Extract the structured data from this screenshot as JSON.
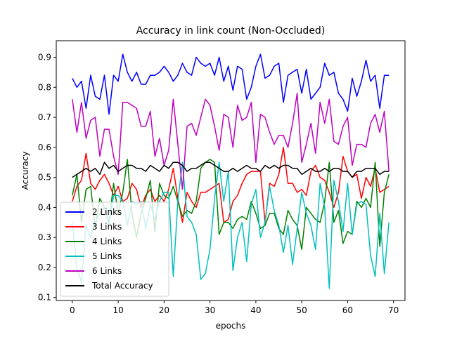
{
  "chart_data": {
    "type": "line",
    "title": "Accuracy in link count (Non-Occluded)",
    "xlabel": "epochs",
    "ylabel": "Accuracy",
    "xlim": [
      -3.5,
      72.5
    ],
    "ylim": [
      0.09,
      0.955
    ],
    "xticks": [
      0,
      10,
      20,
      30,
      40,
      50,
      60,
      70
    ],
    "yticks": [
      0.1,
      0.2,
      0.3,
      0.4,
      0.5,
      0.6,
      0.7,
      0.8,
      0.9
    ],
    "legend_position": "lower-left",
    "grid": false,
    "x": [
      0,
      1,
      2,
      3,
      4,
      5,
      6,
      7,
      8,
      9,
      10,
      11,
      12,
      13,
      14,
      15,
      16,
      17,
      18,
      19,
      20,
      21,
      22,
      23,
      24,
      25,
      26,
      27,
      28,
      29,
      30,
      31,
      32,
      33,
      34,
      35,
      36,
      37,
      38,
      39,
      40,
      41,
      42,
      43,
      44,
      45,
      46,
      47,
      48,
      49,
      50,
      51,
      52,
      53,
      54,
      55,
      56,
      57,
      58,
      59,
      60,
      61,
      62,
      63,
      64,
      65,
      66,
      67,
      68,
      69
    ],
    "series": [
      {
        "name": "2 Links",
        "color": "#0000ff",
        "values": [
          0.83,
          0.8,
          0.82,
          0.73,
          0.84,
          0.77,
          0.76,
          0.84,
          0.71,
          0.84,
          0.82,
          0.91,
          0.85,
          0.82,
          0.85,
          0.81,
          0.81,
          0.84,
          0.84,
          0.85,
          0.87,
          0.85,
          0.82,
          0.84,
          0.88,
          0.85,
          0.84,
          0.9,
          0.88,
          0.87,
          0.88,
          0.84,
          0.9,
          0.82,
          0.87,
          0.79,
          0.87,
          0.86,
          0.76,
          0.8,
          0.87,
          0.91,
          0.83,
          0.84,
          0.87,
          0.88,
          0.75,
          0.84,
          0.85,
          0.86,
          0.78,
          0.86,
          0.76,
          0.78,
          0.8,
          0.88,
          0.84,
          0.85,
          0.78,
          0.76,
          0.72,
          0.83,
          0.77,
          0.82,
          0.89,
          0.82,
          0.84,
          0.73,
          0.84,
          0.84
        ]
      },
      {
        "name": "3 Links",
        "color": "#ff0000",
        "values": [
          0.42,
          0.47,
          0.49,
          0.58,
          0.48,
          0.46,
          0.49,
          0.51,
          0.48,
          0.44,
          0.47,
          0.42,
          0.43,
          0.48,
          0.46,
          0.4,
          0.44,
          0.46,
          0.42,
          0.44,
          0.42,
          0.46,
          0.53,
          0.43,
          0.35,
          0.45,
          0.42,
          0.4,
          0.45,
          0.45,
          0.46,
          0.47,
          0.48,
          0.35,
          0.36,
          0.42,
          0.44,
          0.48,
          0.51,
          0.52,
          0.52,
          0.52,
          0.35,
          0.48,
          0.47,
          0.51,
          0.6,
          0.48,
          0.48,
          0.45,
          0.46,
          0.44,
          0.52,
          0.54,
          0.5,
          0.49,
          0.45,
          0.4,
          0.45,
          0.57,
          0.52,
          0.5,
          0.51,
          0.43,
          0.5,
          0.47,
          0.53,
          0.45,
          0.46,
          0.47
        ]
      },
      {
        "name": "4 Links",
        "color": "#008000",
        "values": [
          0.44,
          0.51,
          0.35,
          0.46,
          0.47,
          0.33,
          0.43,
          0.4,
          0.35,
          0.48,
          0.38,
          0.45,
          0.56,
          0.38,
          0.3,
          0.38,
          0.43,
          0.49,
          0.32,
          0.48,
          0.44,
          0.43,
          0.47,
          0.42,
          0.37,
          0.39,
          0.38,
          0.42,
          0.53,
          0.55,
          0.56,
          0.55,
          0.31,
          0.35,
          0.35,
          0.33,
          0.36,
          0.37,
          0.36,
          0.42,
          0.38,
          0.33,
          0.34,
          0.38,
          0.38,
          0.33,
          0.31,
          0.39,
          0.36,
          0.34,
          0.26,
          0.4,
          0.38,
          0.36,
          0.35,
          0.42,
          0.55,
          0.35,
          0.39,
          0.28,
          0.32,
          0.31,
          0.42,
          0.4,
          0.43,
          0.4,
          0.55,
          0.27,
          0.45,
          0.51
        ]
      },
      {
        "name": "5 Links",
        "color": "#00bfbf",
        "values": [
          0.35,
          0.2,
          0.15,
          0.34,
          0.3,
          0.35,
          0.38,
          0.4,
          0.34,
          0.44,
          0.44,
          0.42,
          0.34,
          0.42,
          0.41,
          0.42,
          0.33,
          0.41,
          0.36,
          0.42,
          0.45,
          0.45,
          0.17,
          0.42,
          0.55,
          0.37,
          0.35,
          0.31,
          0.16,
          0.18,
          0.26,
          0.43,
          0.55,
          0.42,
          0.52,
          0.19,
          0.3,
          0.35,
          0.22,
          0.41,
          0.46,
          0.3,
          0.35,
          0.47,
          0.39,
          0.34,
          0.25,
          0.34,
          0.21,
          0.33,
          0.45,
          0.38,
          0.34,
          0.26,
          0.48,
          0.4,
          0.13,
          0.49,
          0.42,
          0.32,
          0.48,
          0.31,
          0.41,
          0.42,
          0.41,
          0.24,
          0.17,
          0.38,
          0.18,
          0.35
        ]
      },
      {
        "name": "6 Links",
        "color": "#bf00bf",
        "values": [
          0.76,
          0.65,
          0.75,
          0.63,
          0.69,
          0.7,
          0.57,
          0.66,
          0.66,
          0.57,
          0.51,
          0.75,
          0.75,
          0.74,
          0.73,
          0.67,
          0.67,
          0.72,
          0.57,
          0.63,
          0.54,
          0.59,
          0.76,
          0.61,
          0.46,
          0.67,
          0.68,
          0.64,
          0.7,
          0.76,
          0.74,
          0.67,
          0.59,
          0.71,
          0.7,
          0.6,
          0.74,
          0.69,
          0.7,
          0.75,
          0.55,
          0.71,
          0.7,
          0.65,
          0.61,
          0.64,
          0.64,
          0.6,
          0.68,
          0.78,
          0.55,
          0.61,
          0.68,
          0.58,
          0.75,
          0.68,
          0.76,
          0.62,
          0.61,
          0.67,
          0.7,
          0.54,
          0.61,
          0.61,
          0.6,
          0.68,
          0.71,
          0.65,
          0.72,
          0.52
        ]
      },
      {
        "name": "Total Accuracy",
        "color": "#000000",
        "values": [
          0.5,
          0.51,
          0.52,
          0.53,
          0.52,
          0.53,
          0.51,
          0.55,
          0.53,
          0.54,
          0.52,
          0.53,
          0.54,
          0.54,
          0.53,
          0.53,
          0.52,
          0.54,
          0.53,
          0.52,
          0.54,
          0.53,
          0.55,
          0.55,
          0.54,
          0.52,
          0.53,
          0.53,
          0.54,
          0.55,
          0.55,
          0.54,
          0.53,
          0.52,
          0.52,
          0.53,
          0.52,
          0.53,
          0.54,
          0.53,
          0.53,
          0.52,
          0.54,
          0.53,
          0.54,
          0.53,
          0.54,
          0.54,
          0.53,
          0.53,
          0.51,
          0.52,
          0.53,
          0.52,
          0.52,
          0.53,
          0.52,
          0.53,
          0.53,
          0.52,
          0.52,
          0.5,
          0.52,
          0.52,
          0.53,
          0.53,
          0.53,
          0.51,
          0.52,
          0.52
        ]
      }
    ]
  }
}
